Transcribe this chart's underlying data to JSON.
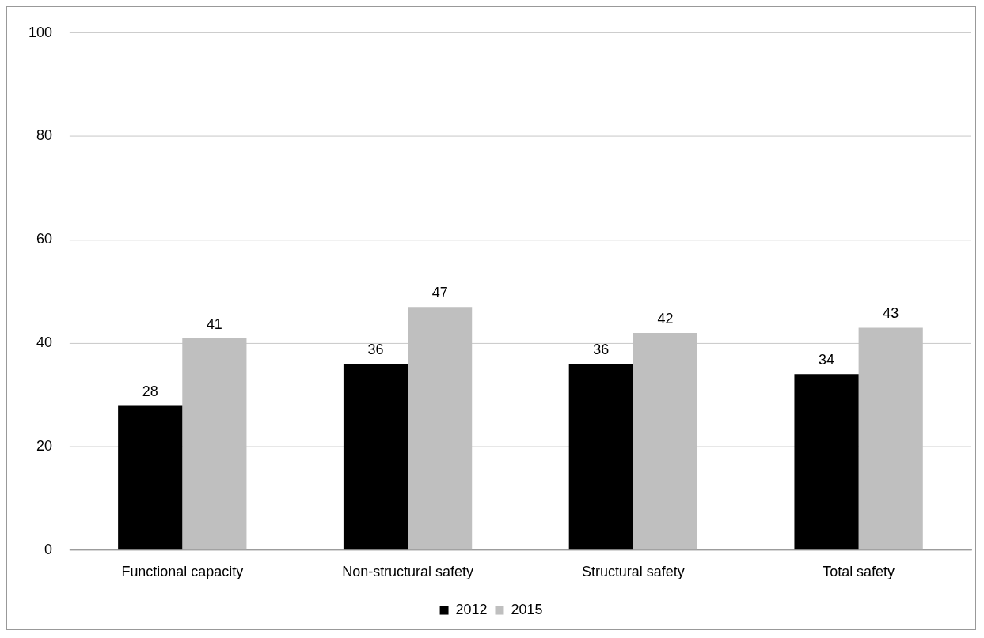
{
  "chart_data": {
    "type": "bar",
    "categories": [
      "Functional capacity",
      "Non-structural safety",
      "Structural safety",
      "Total safety"
    ],
    "series": [
      {
        "name": "2012",
        "color": "#000000",
        "values": [
          28,
          36,
          36,
          34
        ]
      },
      {
        "name": "2015",
        "color": "#bfbfbf",
        "values": [
          41,
          47,
          42,
          43
        ]
      }
    ],
    "ylim": [
      0,
      100
    ],
    "yticks": [
      0,
      20,
      40,
      60,
      80,
      100
    ],
    "grid": "y",
    "legend": "bottom",
    "data_labels": true
  }
}
